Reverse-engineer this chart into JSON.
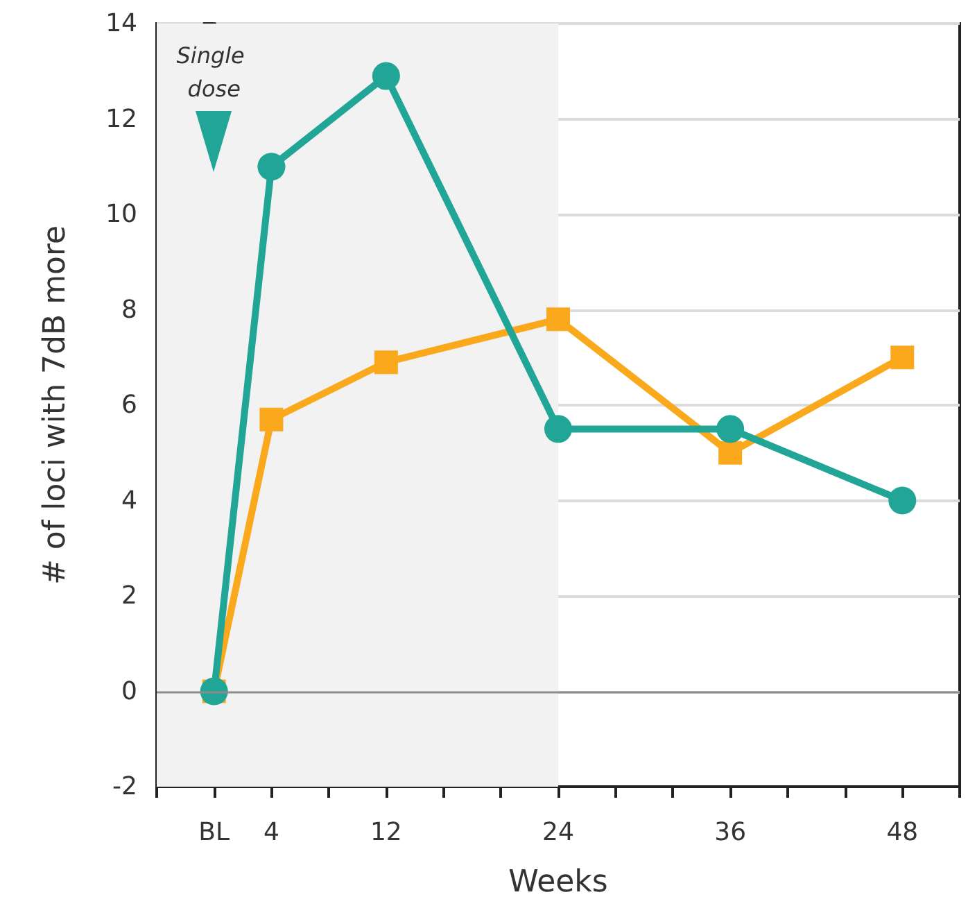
{
  "chart_data": {
    "type": "line",
    "xlabel": "Weeks",
    "ylabel": "# of loci with 7dB more",
    "x": [
      0,
      4,
      12,
      24,
      36,
      48
    ],
    "series": [
      {
        "color": "#fba91c",
        "marker": "square",
        "values": [
          0,
          5.7,
          6.9,
          7.8,
          5.0,
          7.0
        ]
      },
      {
        "color": "#21a597",
        "marker": "circle",
        "values": [
          0,
          11.0,
          12.9,
          5.5,
          5.5,
          4.0
        ]
      }
    ],
    "xlim": [
      -4,
      52
    ],
    "xticks": [
      {
        "value": -4,
        "label": null
      },
      {
        "value": 0,
        "label": "BL"
      },
      4,
      {
        "value": 8,
        "label": null
      },
      12,
      {
        "value": 16,
        "label": null
      },
      {
        "value": 20,
        "label": null
      },
      24,
      {
        "value": 28,
        "label": null
      },
      {
        "value": 32,
        "label": null
      },
      36,
      {
        "value": 40,
        "label": null
      },
      {
        "value": 44,
        "label": null
      },
      48,
      {
        "value": 52,
        "label": null
      }
    ],
    "ylim": [
      -2,
      14
    ],
    "yticks": [
      -2,
      0,
      2,
      4,
      6,
      8,
      10,
      12,
      14
    ],
    "grid": "y",
    "line_style": "solid",
    "bands": [
      {
        "axis": "x",
        "from": -4,
        "to": 24,
        "color": "#f2f2f2"
      }
    ],
    "ref_lines": [
      {
        "axis": "y",
        "value": 0,
        "color": "#8c8c8c"
      }
    ],
    "annotations": [
      "Single dose"
    ]
  }
}
